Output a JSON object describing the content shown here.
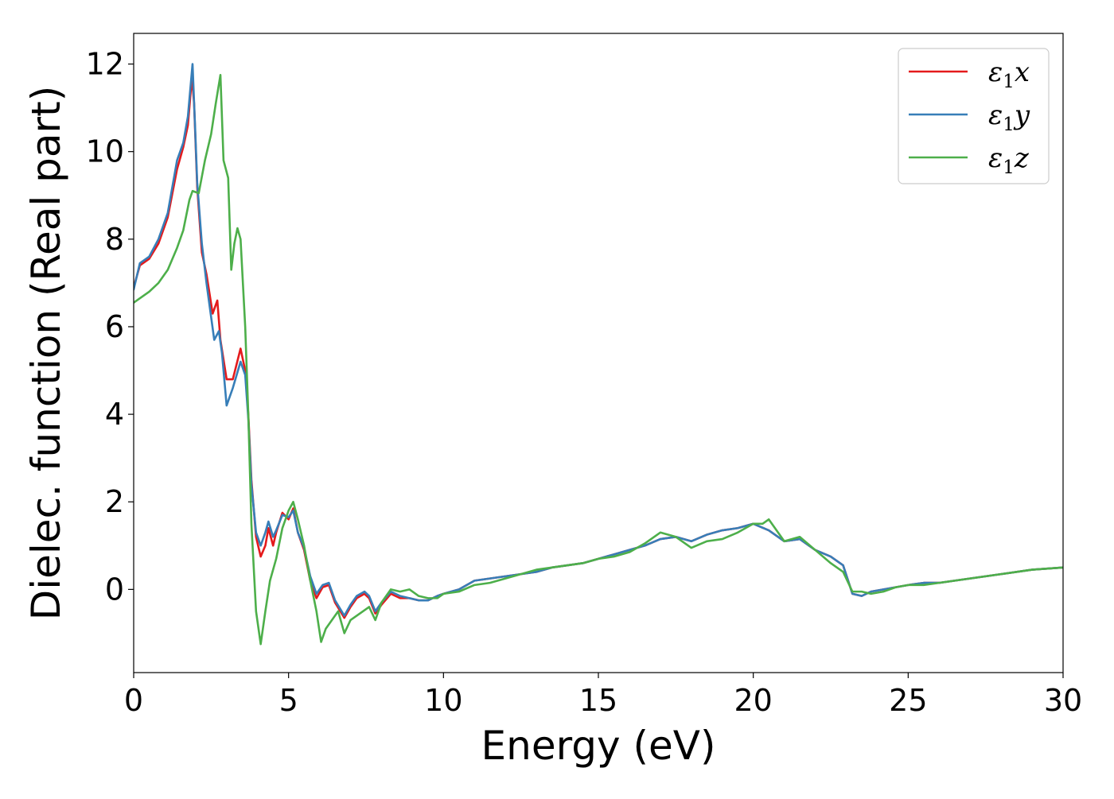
{
  "chart_data": {
    "type": "line",
    "title": "",
    "xlabel": "Energy (eV)",
    "ylabel": "Dielec. function (Real part)",
    "xlim": [
      0,
      30
    ],
    "ylim": [
      -1.9,
      12.7
    ],
    "xticks": [
      0,
      5,
      10,
      15,
      20,
      25,
      30
    ],
    "xtick_labels": [
      "0",
      "5",
      "10",
      "15",
      "20",
      "25",
      "30"
    ],
    "yticks": [
      0,
      2,
      4,
      6,
      8,
      10,
      12
    ],
    "ytick_labels": [
      "0",
      "2",
      "4",
      "6",
      "8",
      "10",
      "12"
    ],
    "grid": false,
    "legend_position": "top-right",
    "series": [
      {
        "name": "ε₁x",
        "legend_main": "ε",
        "legend_sub": "1",
        "legend_tail": "x",
        "color": "#e41a1c",
        "x": [
          0,
          0.2,
          0.5,
          0.8,
          1.1,
          1.4,
          1.6,
          1.75,
          1.88,
          1.95,
          2.05,
          2.2,
          2.35,
          2.55,
          2.7,
          2.8,
          3.0,
          3.2,
          3.45,
          3.6,
          3.7,
          3.8,
          3.95,
          4.1,
          4.25,
          4.35,
          4.5,
          4.6,
          4.8,
          5.0,
          5.15,
          5.3,
          5.5,
          5.7,
          5.9,
          6.1,
          6.3,
          6.5,
          6.8,
          7.0,
          7.2,
          7.45,
          7.6,
          7.8,
          8.0,
          8.3,
          8.6,
          8.9,
          9.2,
          9.5,
          9.8,
          10.0,
          10.5,
          11.0,
          11.5,
          12.0,
          12.5,
          13.0,
          13.5,
          14.0,
          14.5,
          15.0,
          15.5,
          16.0,
          16.5,
          17.0,
          17.5,
          18.0,
          18.5,
          19.0,
          19.5,
          20.0,
          20.5,
          21.0,
          21.5,
          22.0,
          22.5,
          22.9,
          23.2,
          23.5,
          23.8,
          24.2,
          24.6,
          25.0,
          25.5,
          26.0,
          27.0,
          28.0,
          29.0,
          30.0
        ],
        "y": [
          6.9,
          7.4,
          7.55,
          7.9,
          8.5,
          9.6,
          10.1,
          10.6,
          11.7,
          11.1,
          9.2,
          7.7,
          7.2,
          6.3,
          6.6,
          5.7,
          4.8,
          4.8,
          5.5,
          5.0,
          4.0,
          2.5,
          1.2,
          0.75,
          1.0,
          1.4,
          1.0,
          1.3,
          1.75,
          1.6,
          1.85,
          1.3,
          0.9,
          0.2,
          -0.2,
          0.05,
          0.1,
          -0.3,
          -0.65,
          -0.4,
          -0.2,
          -0.1,
          -0.2,
          -0.55,
          -0.35,
          -0.1,
          -0.2,
          -0.2,
          -0.25,
          -0.25,
          -0.15,
          -0.1,
          0.0,
          0.2,
          0.25,
          0.3,
          0.35,
          0.4,
          0.5,
          0.55,
          0.6,
          0.7,
          0.8,
          0.9,
          1.0,
          1.15,
          1.2,
          1.1,
          1.25,
          1.35,
          1.4,
          1.5,
          1.35,
          1.1,
          1.15,
          0.9,
          0.75,
          0.55,
          -0.1,
          -0.15,
          -0.05,
          0.0,
          0.05,
          0.1,
          0.15,
          0.15,
          0.25,
          0.35,
          0.45,
          0.5
        ]
      },
      {
        "name": "ε₁y",
        "legend_main": "ε",
        "legend_sub": "1",
        "legend_tail": "y",
        "color": "#377eb8",
        "x": [
          0,
          0.2,
          0.5,
          0.8,
          1.1,
          1.4,
          1.6,
          1.75,
          1.9,
          1.98,
          2.05,
          2.2,
          2.35,
          2.6,
          2.75,
          2.85,
          3.0,
          3.2,
          3.45,
          3.6,
          3.7,
          3.8,
          3.95,
          4.1,
          4.25,
          4.35,
          4.5,
          4.6,
          4.8,
          5.0,
          5.15,
          5.3,
          5.5,
          5.7,
          5.9,
          6.1,
          6.3,
          6.5,
          6.8,
          7.0,
          7.2,
          7.45,
          7.6,
          7.8,
          8.0,
          8.3,
          8.6,
          8.9,
          9.2,
          9.5,
          9.8,
          10.0,
          10.5,
          11.0,
          11.5,
          12.0,
          12.5,
          13.0,
          13.5,
          14.0,
          14.5,
          15.0,
          15.5,
          16.0,
          16.5,
          17.0,
          17.5,
          18.0,
          18.5,
          19.0,
          19.5,
          20.0,
          20.5,
          21.0,
          21.5,
          22.0,
          22.5,
          22.9,
          23.2,
          23.5,
          23.8,
          24.2,
          24.6,
          25.0,
          25.5,
          26.0,
          27.0,
          28.0,
          29.0,
          30.0
        ],
        "y": [
          6.85,
          7.45,
          7.6,
          8.0,
          8.6,
          9.8,
          10.2,
          10.8,
          12.0,
          10.6,
          9.3,
          7.9,
          7.0,
          5.7,
          5.9,
          5.4,
          4.2,
          4.6,
          5.2,
          4.9,
          3.9,
          2.4,
          1.3,
          1.0,
          1.3,
          1.55,
          1.2,
          1.35,
          1.7,
          1.65,
          1.8,
          1.3,
          0.95,
          0.3,
          -0.1,
          0.1,
          0.15,
          -0.25,
          -0.6,
          -0.35,
          -0.15,
          -0.05,
          -0.15,
          -0.5,
          -0.3,
          -0.05,
          -0.15,
          -0.2,
          -0.25,
          -0.25,
          -0.15,
          -0.1,
          0.0,
          0.2,
          0.25,
          0.3,
          0.35,
          0.4,
          0.5,
          0.55,
          0.6,
          0.7,
          0.8,
          0.9,
          1.0,
          1.15,
          1.2,
          1.1,
          1.25,
          1.35,
          1.4,
          1.5,
          1.35,
          1.1,
          1.15,
          0.9,
          0.75,
          0.55,
          -0.1,
          -0.15,
          -0.05,
          0.0,
          0.05,
          0.1,
          0.15,
          0.15,
          0.25,
          0.35,
          0.45,
          0.5
        ]
      },
      {
        "name": "ε₁z",
        "legend_main": "ε",
        "legend_sub": "1",
        "legend_tail": "z",
        "color": "#4daf4a",
        "x": [
          0,
          0.2,
          0.5,
          0.8,
          1.1,
          1.4,
          1.6,
          1.8,
          1.9,
          2.1,
          2.3,
          2.5,
          2.65,
          2.8,
          2.9,
          3.05,
          3.15,
          3.25,
          3.35,
          3.45,
          3.6,
          3.7,
          3.8,
          3.95,
          4.1,
          4.25,
          4.4,
          4.6,
          4.8,
          5.0,
          5.15,
          5.3,
          5.5,
          5.7,
          5.9,
          6.05,
          6.2,
          6.4,
          6.6,
          6.8,
          7.0,
          7.2,
          7.4,
          7.6,
          7.8,
          8.0,
          8.3,
          8.6,
          8.9,
          9.2,
          9.5,
          9.8,
          10.0,
          10.5,
          11.0,
          11.5,
          12.0,
          12.5,
          13.0,
          13.5,
          14.0,
          14.5,
          15.0,
          15.5,
          16.0,
          16.5,
          17.0,
          17.5,
          18.0,
          18.5,
          19.0,
          19.5,
          20.0,
          20.3,
          20.5,
          20.8,
          21.0,
          21.5,
          22.0,
          22.5,
          22.9,
          23.2,
          23.5,
          23.8,
          24.2,
          24.6,
          25.0,
          25.5,
          26.0,
          27.0,
          28.0,
          29.0,
          30.0
        ],
        "y": [
          6.55,
          6.65,
          6.8,
          7.0,
          7.3,
          7.8,
          8.2,
          8.9,
          9.1,
          9.05,
          9.8,
          10.4,
          11.1,
          11.75,
          9.8,
          9.4,
          7.3,
          7.9,
          8.25,
          8.0,
          6.0,
          4.0,
          1.5,
          -0.5,
          -1.25,
          -0.5,
          0.2,
          0.7,
          1.4,
          1.8,
          2.0,
          1.6,
          1.0,
          0.2,
          -0.5,
          -1.2,
          -0.9,
          -0.7,
          -0.5,
          -1.0,
          -0.7,
          -0.6,
          -0.5,
          -0.4,
          -0.7,
          -0.3,
          0.0,
          -0.05,
          0.0,
          -0.15,
          -0.2,
          -0.2,
          -0.1,
          -0.05,
          0.1,
          0.15,
          0.25,
          0.35,
          0.45,
          0.5,
          0.55,
          0.6,
          0.7,
          0.75,
          0.85,
          1.05,
          1.3,
          1.2,
          0.95,
          1.1,
          1.15,
          1.3,
          1.5,
          1.5,
          1.6,
          1.3,
          1.1,
          1.2,
          0.9,
          0.6,
          0.4,
          -0.05,
          -0.05,
          -0.1,
          -0.05,
          0.05,
          0.1,
          0.1,
          0.15,
          0.25,
          0.35,
          0.45,
          0.5
        ]
      }
    ]
  }
}
